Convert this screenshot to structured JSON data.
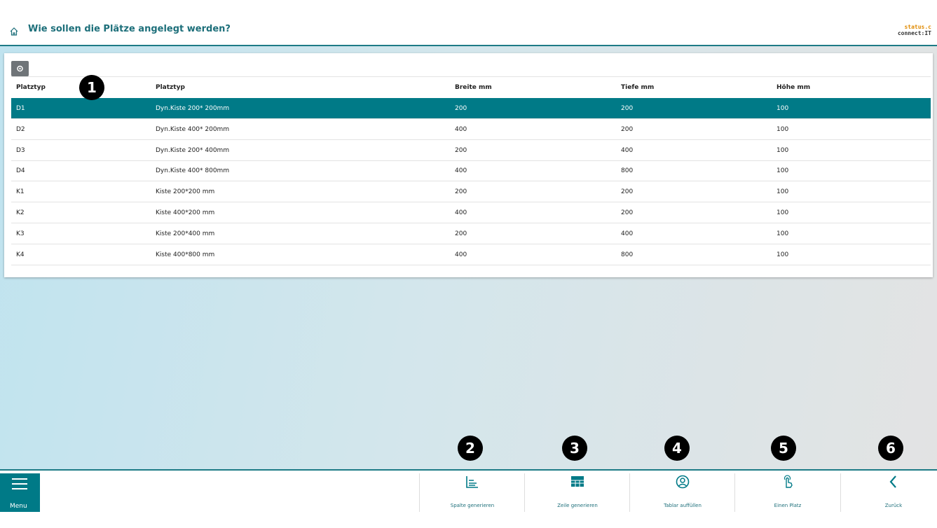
{
  "header": {
    "title": "Wie sollen die Plätze angelegt werden?",
    "logo": [
      "status.c",
      "connect:IT"
    ]
  },
  "table": {
    "columns": [
      "Platztyp",
      "Platztyp",
      "Breite mm",
      "Tiefe mm",
      "Höhe mm"
    ],
    "rows": [
      [
        "D1",
        "Dyn.Kiste 200* 200mm",
        200,
        200,
        100
      ],
      [
        "D2",
        "Dyn.Kiste 400* 200mm",
        400,
        200,
        100
      ],
      [
        "D3",
        "Dyn.Kiste 200* 400mm",
        200,
        400,
        100
      ],
      [
        "D4",
        "Dyn.Kiste 400* 800mm",
        400,
        800,
        100
      ],
      [
        "K1",
        "Kiste 200*200 mm",
        200,
        200,
        100
      ],
      [
        "K2",
        "Kiste 400*200 mm",
        400,
        200,
        100
      ],
      [
        "K3",
        "Kiste 200*400 mm",
        200,
        400,
        100
      ],
      [
        "K4",
        "Kiste 400*800 mm",
        400,
        800,
        100
      ]
    ]
  },
  "callouts": [
    "1",
    "2",
    "3",
    "4",
    "5",
    "6"
  ],
  "footer": {
    "menu": "Menu",
    "buttons": [
      "Spalte generieren",
      "Zeile generieren",
      "Tablar auffüllen",
      "Einen Platz",
      "Zurück"
    ]
  }
}
